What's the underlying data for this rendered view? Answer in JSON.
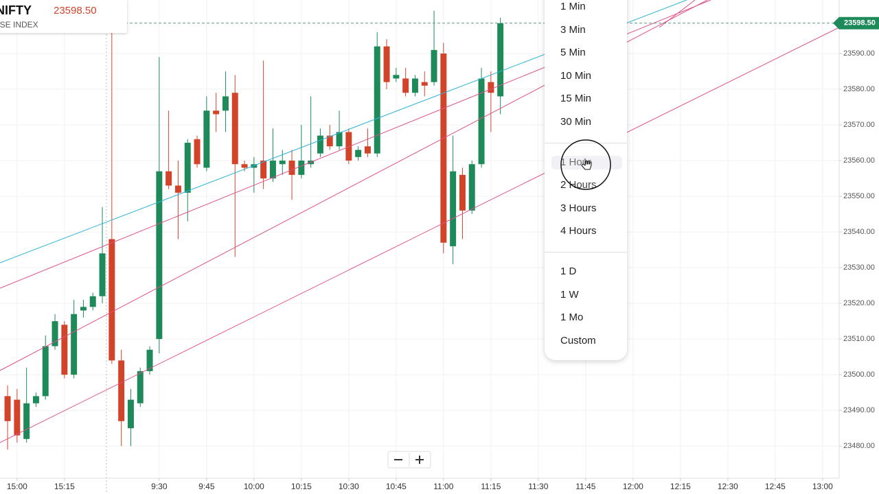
{
  "chart_data": {
    "type": "candlestick",
    "open": [
      23494,
      23493,
      23482,
      23492,
      23494,
      23508,
      23514,
      23500,
      23518,
      23519,
      23522,
      23538,
      23504,
      23485,
      23492,
      23501,
      23510,
      23557,
      23553,
      23551,
      23566,
      23558,
      23574,
      23574,
      23579,
      23559,
      23558,
      23560,
      23555,
      23559,
      23560,
      23556,
      23559,
      23562,
      23567,
      23564,
      23568,
      23561,
      23564,
      23562,
      23592,
      23583,
      23583,
      23579,
      23582,
      23582,
      23590,
      23536,
      23556,
      23546,
      23559,
      23582,
      23578
    ],
    "high": [
      23497,
      23496,
      23502,
      23495,
      23511,
      23517,
      23515,
      23521,
      23521,
      23523,
      23547,
      23597,
      23507,
      23496,
      23502,
      23508,
      23589,
      23574,
      23560,
      23566,
      23567,
      23578,
      23579,
      23585,
      23584,
      23560,
      23561,
      23588,
      23569,
      23563,
      23563,
      23570,
      23578,
      23569,
      23570,
      23574,
      23569,
      23564,
      23569,
      23596,
      23594,
      23586,
      23586,
      23584,
      23585,
      23602,
      23593,
      23567,
      23558,
      23560,
      23586,
      23585,
      23600
    ],
    "low": [
      23479,
      23481,
      23481,
      23491,
      23493,
      23507,
      23499,
      23499,
      23516,
      23518,
      23520,
      23503,
      23480,
      23480,
      23491,
      23500,
      23506,
      23552,
      23538,
      23543,
      23558,
      23557,
      23568,
      23568,
      23533,
      23557,
      23551,
      23552,
      23554,
      23556,
      23549,
      23555,
      23558,
      23561,
      23563,
      23563,
      23559,
      23560,
      23561,
      23561,
      23580,
      23582,
      23578,
      23578,
      23578,
      23581,
      23534,
      23531,
      23538,
      23545,
      23558,
      23568,
      23573
    ],
    "close": [
      23487,
      23483,
      23492,
      23494,
      23508,
      23515,
      23500,
      23517,
      23519,
      23522,
      23534,
      23504,
      23487,
      23493,
      23501,
      23507,
      23557,
      23553,
      23551,
      23565,
      23559,
      23574,
      23573,
      23578,
      23559,
      23558,
      23559,
      23555,
      23560,
      23560,
      23556,
      23560,
      23560,
      23567,
      23564,
      23568,
      23560,
      23563,
      23562,
      23592,
      23582,
      23584,
      23579,
      23583,
      23581,
      23591,
      23537,
      23557,
      23546,
      23559,
      23583,
      23579,
      23598.5
    ],
    "up_color": "#1e8a5a",
    "down_color": "#d1442a",
    "last_price": {
      "value": 23598.5,
      "label": "23598.50"
    },
    "xlim": [
      -0.8,
      87.75
    ],
    "xticks": [
      {
        "value": 1,
        "label": "15:00"
      },
      {
        "value": 6,
        "label": "15:15"
      },
      {
        "value": 16,
        "label": "9:30"
      },
      {
        "value": 21,
        "label": "9:45"
      },
      {
        "value": 26,
        "label": "10:00"
      },
      {
        "value": 31,
        "label": "10:15"
      },
      {
        "value": 36,
        "label": "10:30"
      },
      {
        "value": 41,
        "label": "10:45"
      },
      {
        "value": 46,
        "label": "11:00"
      },
      {
        "value": 51,
        "label": "11:15"
      },
      {
        "value": 56,
        "label": "11:30"
      },
      {
        "value": 61,
        "label": "11:45"
      },
      {
        "value": 66,
        "label": "12:00"
      },
      {
        "value": 71,
        "label": "12:15"
      },
      {
        "value": 76,
        "label": "12:30"
      },
      {
        "value": 81,
        "label": "12:45"
      },
      {
        "value": 86,
        "label": "13:00"
      }
    ],
    "ylim": [
      23471,
      23605
    ],
    "yticks": [
      {
        "value": 23480,
        "label": "23480.00"
      },
      {
        "value": 23490,
        "label": "23490.00"
      },
      {
        "value": 23500,
        "label": "23500.00"
      },
      {
        "value": 23510,
        "label": "23510.00"
      },
      {
        "value": 23520,
        "label": "23520.00"
      },
      {
        "value": 23530,
        "label": "23530.00"
      },
      {
        "value": 23540,
        "label": "23540.00"
      },
      {
        "value": 23550,
        "label": "23550.00"
      },
      {
        "value": 23560,
        "label": "23560.00"
      },
      {
        "value": 23570,
        "label": "23570.00"
      },
      {
        "value": 23580,
        "label": "23580.00"
      },
      {
        "value": 23590,
        "label": "23590.00"
      }
    ],
    "grid": true
  },
  "symbol": {
    "name": "NIFTY",
    "exchange": "NSE INDEX"
  },
  "interval_menu": {
    "groups": [
      [
        "1 Min",
        "3 Min",
        "5 Min",
        "10 Min",
        "15 Min",
        "30 Min"
      ],
      [
        "1 Hour",
        "2 Hours",
        "3 Hours",
        "4 Hours"
      ],
      [
        "1 D",
        "1 W",
        "1 Mo",
        "Custom"
      ]
    ],
    "hovered": "1 Hour"
  }
}
